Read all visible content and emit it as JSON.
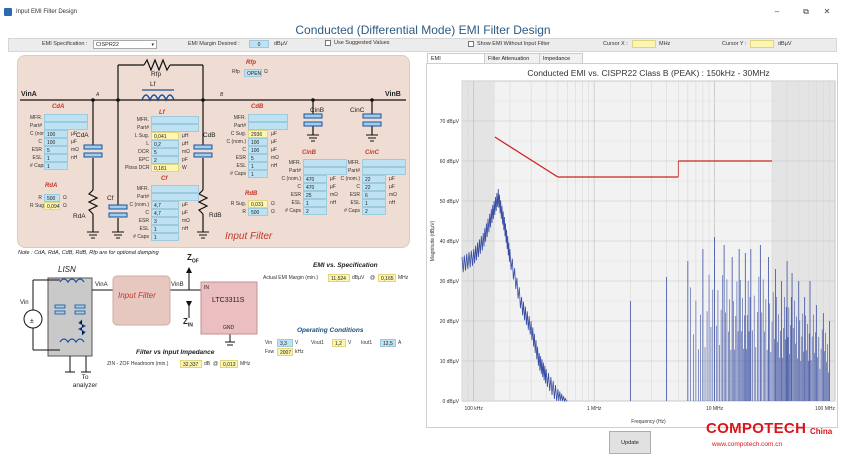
{
  "window": {
    "title": "Input EMI Filter Design",
    "buttons": {
      "minimize": "–",
      "maximize": "⧉",
      "close": "✕"
    },
    "main_title": "Conducted (Differential Mode) EMI Filter Design"
  },
  "options": {
    "emi_spec_label": "EMI Specification :",
    "emi_spec_value": "CISPR22",
    "margin_label": "EMI Margin Desired :",
    "margin_value": "0",
    "margin_unit": "dBµV",
    "use_suggested": "Use Suggested Values",
    "show_without_filter": "Show EMI Without Input Filter",
    "cursor_x_label": "Cursor X :",
    "cursor_x_unit": "MHz",
    "cursor_y_label": "Cursor Y :",
    "cursor_y_unit": "dBµV"
  },
  "schematic": {
    "vin_a": "VinA",
    "vin_b": "VinB",
    "node_a": "A",
    "node_b": "B",
    "rfp": {
      "title": "Rfp",
      "sym": "Rfp",
      "field_label": "Rfp",
      "value": "OPEN",
      "unit": "Ω"
    },
    "lf_sym": "Lf",
    "cda": {
      "title": "CdA",
      "sym": "CdA",
      "rows": [
        {
          "label": "MFR.",
          "value": "",
          "unit": "",
          "style": "b"
        },
        {
          "label": "Part#",
          "value": "",
          "unit": "",
          "style": "b"
        },
        {
          "label": "C (nom.)",
          "value": "100",
          "unit": "µF",
          "style": "b"
        },
        {
          "label": "C",
          "value": "100",
          "unit": "µF",
          "style": "b"
        },
        {
          "label": "ESR",
          "value": "5",
          "unit": "mΩ",
          "style": "b"
        },
        {
          "label": "ESL",
          "value": "1",
          "unit": "nH",
          "style": "b"
        },
        {
          "label": "# Caps",
          "value": "1",
          "unit": "",
          "style": "b"
        }
      ]
    },
    "rda": {
      "title": "RdA",
      "sym": "RdA",
      "rows": [
        {
          "label": "R",
          "value": "500",
          "unit": "Ω",
          "style": "b"
        },
        {
          "label": "R Sug.",
          "value": "0,094",
          "unit": "Ω",
          "style": "y"
        }
      ]
    },
    "lf": {
      "title": "Lf",
      "rows": [
        {
          "label": "MFR.",
          "value": "",
          "unit": "",
          "style": "b"
        },
        {
          "label": "Part#",
          "value": "",
          "unit": "",
          "style": "b"
        },
        {
          "label": "L Sug.",
          "value": "0,041",
          "unit": "µH",
          "style": "y"
        },
        {
          "label": "L",
          "value": "0,2",
          "unit": "µH",
          "style": "b"
        },
        {
          "label": "DCR",
          "value": "5",
          "unit": "mΩ",
          "style": "b"
        },
        {
          "label": "EPC",
          "value": "2",
          "unit": "pF",
          "style": "b"
        },
        {
          "label": "Ploss DCR",
          "value": "0,181",
          "unit": "W",
          "style": "y"
        }
      ]
    },
    "cf": {
      "title": "Cf",
      "sym": "Cf",
      "rows": [
        {
          "label": "MFR.",
          "value": "",
          "unit": "",
          "style": "b"
        },
        {
          "label": "Part#",
          "value": "",
          "unit": "",
          "style": "b"
        },
        {
          "label": "C (nom.)",
          "value": "4,7",
          "unit": "µF",
          "style": "b"
        },
        {
          "label": "C",
          "value": "4,7",
          "unit": "µF",
          "style": "b"
        },
        {
          "label": "ESR",
          "value": "3",
          "unit": "mΩ",
          "style": "b"
        },
        {
          "label": "ESL",
          "value": "1",
          "unit": "nH",
          "style": "b"
        },
        {
          "label": "# Caps",
          "value": "1",
          "unit": "",
          "style": "b"
        }
      ]
    },
    "cdb": {
      "title": "CdB",
      "sym": "CdB",
      "rows": [
        {
          "label": "MFR.",
          "value": "",
          "unit": "",
          "style": "b"
        },
        {
          "label": "Part#",
          "value": "",
          "unit": "",
          "style": "b"
        },
        {
          "label": "C Sug.",
          "value": "2936",
          "unit": "µF",
          "style": "y"
        },
        {
          "label": "C (nom.)",
          "value": "100",
          "unit": "µF",
          "style": "b"
        },
        {
          "label": "C",
          "value": "100",
          "unit": "µF",
          "style": "b"
        },
        {
          "label": "ESR",
          "value": "5",
          "unit": "mΩ",
          "style": "b"
        },
        {
          "label": "ESL",
          "value": "1",
          "unit": "nH",
          "style": "b"
        },
        {
          "label": "# Caps",
          "value": "1",
          "unit": "",
          "style": "b"
        }
      ]
    },
    "rdb": {
      "title": "RdB",
      "sym": "RdB",
      "rows": [
        {
          "label": "R Sug.",
          "value": "0,031",
          "unit": "Ω",
          "style": "y"
        },
        {
          "label": "R",
          "value": "500",
          "unit": "Ω",
          "style": "b"
        }
      ]
    },
    "cinb": {
      "title": "CinB",
      "sym": "CinB",
      "rows": [
        {
          "label": "MFR.",
          "value": "",
          "unit": "",
          "style": "b"
        },
        {
          "label": "Part#",
          "value": "",
          "unit": "",
          "style": "b"
        },
        {
          "label": "C (nom.)",
          "value": "470",
          "unit": "µF",
          "style": "b"
        },
        {
          "label": "C",
          "value": "470",
          "unit": "µF",
          "style": "b"
        },
        {
          "label": "ESR",
          "value": "25",
          "unit": "mΩ",
          "style": "b"
        },
        {
          "label": "ESL",
          "value": "1",
          "unit": "nH",
          "style": "b"
        },
        {
          "label": "# Caps",
          "value": "2",
          "unit": "",
          "style": "b"
        }
      ]
    },
    "cinc": {
      "title": "CinC",
      "sym": "CinC",
      "rows": [
        {
          "label": "MFR.",
          "value": "",
          "unit": "",
          "style": "b"
        },
        {
          "label": "Part#",
          "value": "",
          "unit": "",
          "style": "b"
        },
        {
          "label": "C (nom.)",
          "value": "22",
          "unit": "µF",
          "style": "b"
        },
        {
          "label": "C",
          "value": "22",
          "unit": "µF",
          "style": "b"
        },
        {
          "label": "ESR",
          "value": "6",
          "unit": "mΩ",
          "style": "b"
        },
        {
          "label": "ESL",
          "value": "1",
          "unit": "nH",
          "style": "b"
        },
        {
          "label": "# Caps",
          "value": "2",
          "unit": "",
          "style": "b"
        }
      ]
    },
    "input_filter_label": "Input Filter",
    "note": "Note : CdA, RdA, CdB, RdB, Rfp are for optional damping"
  },
  "block": {
    "lisn": "LISN",
    "vin": "Vin",
    "vin_a": "VinA",
    "vin_b": "VinB",
    "input_filter": "Input Filter",
    "z_of": "Z",
    "z_of_sub": "OF",
    "z_in": "Z",
    "z_in_sub": "IN",
    "in_pin": "IN",
    "gnd_pin": "GND",
    "chip": "LTC3311S",
    "to_analyzer": "To analyzer"
  },
  "emi_spec": {
    "title": "EMI vs. Specification",
    "label": "Actual EMI Margin (min.)",
    "value": "11,524",
    "unit": "dBµV",
    "at": "@",
    "freq": "0,165",
    "freq_unit": "MHz"
  },
  "operating": {
    "title": "Operating Conditions",
    "vin_label": "Vin",
    "vin_value": "3,3",
    "vin_unit": "V",
    "vout_label": "Vout1",
    "vout_value": "1,2",
    "vout_unit": "V",
    "iout_label": "Iout1",
    "iout_value": "12,5",
    "iout_unit": "A",
    "fsw_label": "Fsw",
    "fsw_value": "2007",
    "fsw_unit": "kHz"
  },
  "impedance": {
    "title": "Filter vs Input Impedance",
    "label": "ZIN - ZOF Headroom (min.)",
    "value": "32,337",
    "unit": "dB",
    "at": "@",
    "freq": "0,013",
    "freq_unit": "MHz"
  },
  "tabs": [
    "EMI",
    "Filter Attenuation",
    "Impedance"
  ],
  "update_button": "Update",
  "watermark": {
    "brand": "COMPOTECH",
    "suffix": "China",
    "url": "www.compotech.com.cn"
  },
  "chart_data": {
    "type": "line",
    "title": "Conducted EMI vs. CISPR22 Class B (PEAK) : 150kHz - 30MHz",
    "xlabel": "Frequency (Hz)",
    "ylabel": "Magnitude (dBµV)",
    "x_scale": "log",
    "xlim_mhz": [
      0.08,
      100
    ],
    "ylim": [
      0,
      80
    ],
    "grid": true,
    "x_ticks": [
      "100 kHz",
      "1 MHz",
      "10 MHz",
      "100 MHz"
    ],
    "y_ticks": [
      "0 dBµV",
      "10 dBµV",
      "20 dBµV",
      "30 dBµV",
      "40 dBµV",
      "50 dBµV",
      "60 dBµV",
      "70 dBµV"
    ],
    "limit_color": "#cc2222",
    "emi_color": "#3a4fa3",
    "limit_segments": [
      {
        "x_mhz": [
          0.15,
          0.5
        ],
        "y": [
          66,
          56
        ]
      },
      {
        "x_mhz": [
          0.5,
          5
        ],
        "y": [
          56,
          56
        ]
      },
      {
        "x_mhz": [
          5,
          30
        ],
        "y": [
          60,
          60
        ]
      }
    ],
    "emi_envelope": [
      {
        "x_mhz": 0.08,
        "y": 36
      },
      {
        "x_mhz": 0.1,
        "y": 38
      },
      {
        "x_mhz": 0.12,
        "y": 42
      },
      {
        "x_mhz": 0.14,
        "y": 48
      },
      {
        "x_mhz": 0.16,
        "y": 53
      },
      {
        "x_mhz": 0.18,
        "y": 46
      },
      {
        "x_mhz": 0.2,
        "y": 38
      },
      {
        "x_mhz": 0.25,
        "y": 26
      },
      {
        "x_mhz": 0.3,
        "y": 20
      },
      {
        "x_mhz": 0.35,
        "y": 12
      },
      {
        "x_mhz": 0.4,
        "y": 8
      },
      {
        "x_mhz": 0.5,
        "y": 3
      },
      {
        "x_mhz": 0.6,
        "y": 0
      }
    ],
    "emi_harmonics": [
      {
        "x_mhz": 2.0,
        "y": 25
      },
      {
        "x_mhz": 4.0,
        "y": 31
      },
      {
        "x_mhz": 6.0,
        "y": 35
      },
      {
        "x_mhz": 8.0,
        "y": 38
      },
      {
        "x_mhz": 10.0,
        "y": 41
      },
      {
        "x_mhz": 12.0,
        "y": 39
      },
      {
        "x_mhz": 14.0,
        "y": 36
      },
      {
        "x_mhz": 16.0,
        "y": 38
      },
      {
        "x_mhz": 18.0,
        "y": 37
      },
      {
        "x_mhz": 20.0,
        "y": 38
      },
      {
        "x_mhz": 24.0,
        "y": 39
      },
      {
        "x_mhz": 28.0,
        "y": 36
      },
      {
        "x_mhz": 32.0,
        "y": 33
      },
      {
        "x_mhz": 36.0,
        "y": 30
      },
      {
        "x_mhz": 40.0,
        "y": 35
      },
      {
        "x_mhz": 44.0,
        "y": 32
      },
      {
        "x_mhz": 50.0,
        "y": 30
      },
      {
        "x_mhz": 56.0,
        "y": 26
      },
      {
        "x_mhz": 62.0,
        "y": 30
      },
      {
        "x_mhz": 70.0,
        "y": 24
      },
      {
        "x_mhz": 80.0,
        "y": 22
      },
      {
        "x_mhz": 90.0,
        "y": 20
      }
    ]
  }
}
